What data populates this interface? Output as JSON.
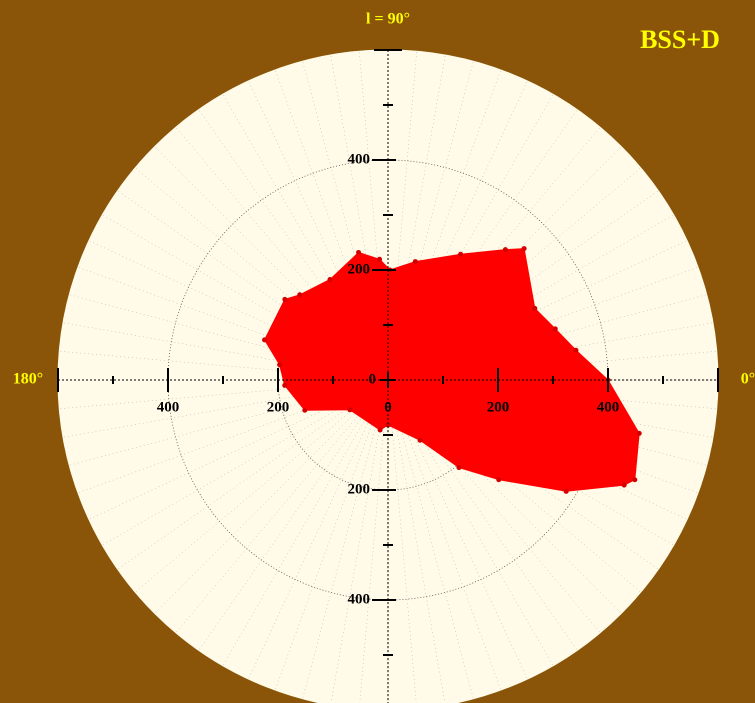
{
  "chart_data": {
    "type": "polar",
    "title": "BSS+D",
    "angle_labels": [
      {
        "value": 90,
        "label": "l = 90°"
      },
      {
        "value": 180,
        "label": "180°"
      },
      {
        "value": 0,
        "label": "0°"
      }
    ],
    "x": [
      0,
      9,
      17,
      26,
      44,
      48,
      60,
      77,
      89,
      94,
      103,
      120,
      136,
      142,
      162,
      172,
      183,
      200,
      218,
      261,
      270,
      298,
      309,
      318,
      328,
      336,
      338,
      348
    ],
    "values": [
      400,
      346,
      318,
      297,
      344,
      319,
      264,
      221,
      200,
      220,
      238,
      211,
      223,
      238,
      236,
      199,
      188,
      161,
      88,
      92,
      82,
      124,
      205,
      271,
      382,
      470,
      484,
      467
    ],
    "color": "#ff0000",
    "marker_color": "#d40000",
    "rlim": [
      0,
      600
    ],
    "rticks": [
      0,
      200,
      400
    ],
    "rminorticks": [
      100,
      300,
      500
    ],
    "grid": true
  }
}
